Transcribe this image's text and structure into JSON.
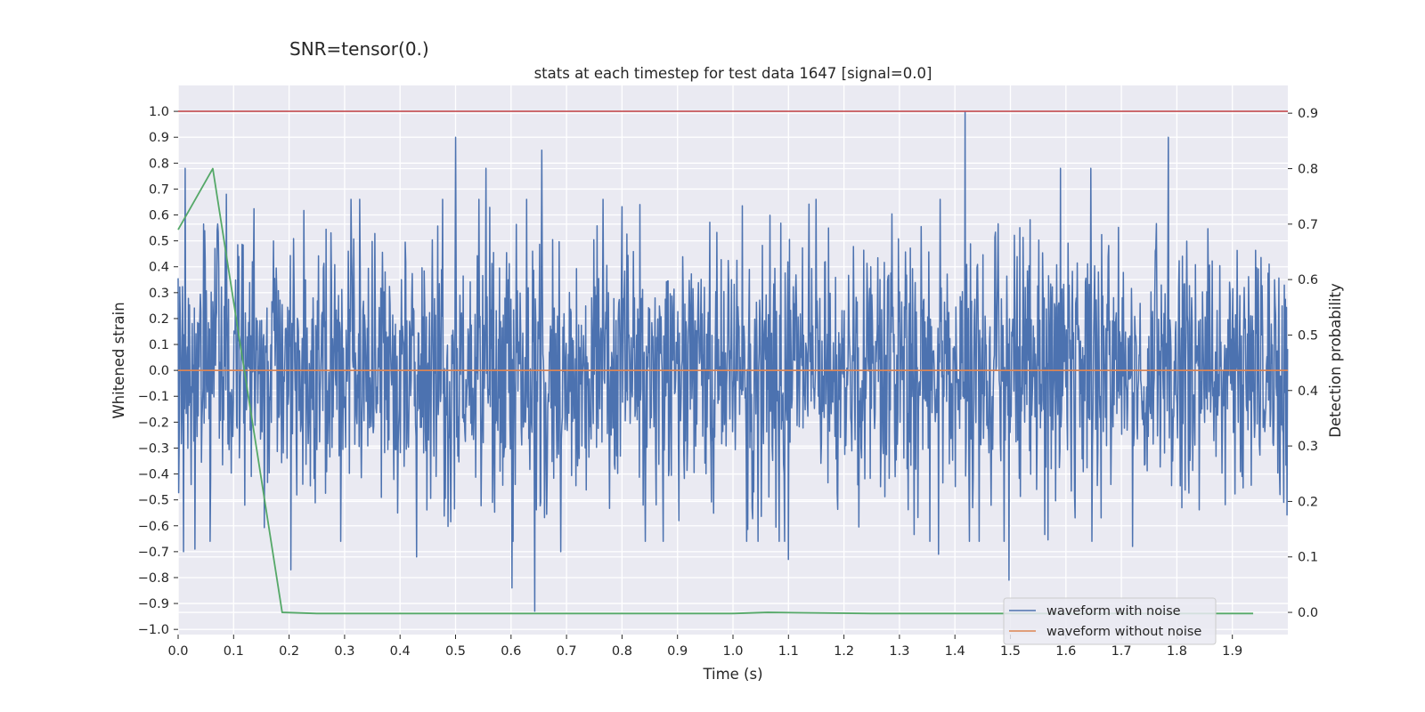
{
  "figure": {
    "suptitle": "SNR=tensor(0.)"
  },
  "chart_data": {
    "type": "line",
    "title": "stats at each timestep for test data 1647 [signal=0.0]",
    "xlabel": "Time (s)",
    "ylabel": "Whitened strain",
    "y2label": "Detection probability",
    "xlim": [
      0.0,
      2.0
    ],
    "ylim": [
      -1.02,
      1.1
    ],
    "y2lim": [
      -0.04,
      0.95
    ],
    "xticks": [
      "0.0",
      "0.1",
      "0.2",
      "0.3",
      "0.4",
      "0.5",
      "0.6",
      "0.7",
      "0.8",
      "0.9",
      "1.0",
      "1.1",
      "1.2",
      "1.3",
      "1.4",
      "1.5",
      "1.6",
      "1.7",
      "1.8",
      "1.9"
    ],
    "yticks": [
      "1.0",
      "0.9",
      "0.8",
      "0.7",
      "0.6",
      "0.5",
      "0.4",
      "0.3",
      "0.2",
      "0.1",
      "0.0",
      "−0.1",
      "−0.2",
      "−0.3",
      "−0.4",
      "−0.5",
      "−0.6",
      "−0.7",
      "−0.8",
      "−0.9",
      "−1.0"
    ],
    "y2ticks": [
      "0.9",
      "0.8",
      "0.7",
      "0.6",
      "0.5",
      "0.4",
      "0.3",
      "0.2",
      "0.1",
      "0.0"
    ],
    "grid": true,
    "legend_position": "bottom-right",
    "threshold_line": {
      "y": 1.0,
      "color": "#c44e52"
    },
    "series": [
      {
        "name": "waveform with noise",
        "color": "#4c72b0",
        "axis": "left",
        "noise_std": 0.26,
        "sample_count": 2048,
        "peaks": [
          {
            "x": 0.013,
            "y": 0.78
          },
          {
            "x": 0.087,
            "y": 0.68
          },
          {
            "x": 0.5,
            "y": 0.9
          },
          {
            "x": 0.555,
            "y": 0.78
          },
          {
            "x": 0.655,
            "y": 0.85
          },
          {
            "x": 1.418,
            "y": 1.0
          },
          {
            "x": 1.785,
            "y": 0.9
          },
          {
            "x": 1.59,
            "y": 0.78
          },
          {
            "x": 1.645,
            "y": 0.78
          },
          {
            "x": 0.01,
            "y": -0.7
          },
          {
            "x": 0.03,
            "y": -0.69
          },
          {
            "x": 0.203,
            "y": -0.77
          },
          {
            "x": 0.602,
            "y": -0.84
          },
          {
            "x": 0.643,
            "y": -0.93
          },
          {
            "x": 1.1,
            "y": -0.73
          },
          {
            "x": 1.497,
            "y": -0.81
          },
          {
            "x": 1.37,
            "y": -0.71
          },
          {
            "x": 0.43,
            "y": -0.72
          },
          {
            "x": 0.69,
            "y": -0.7
          },
          {
            "x": 1.72,
            "y": -0.68
          }
        ]
      },
      {
        "name": "waveform without noise",
        "color": "#dd8452",
        "axis": "left",
        "x": [
          0.0,
          2.0
        ],
        "y": [
          0.0,
          0.0
        ]
      },
      {
        "name": "",
        "color": "#55a868",
        "axis": "right",
        "x": [
          0.0,
          0.0625,
          0.1875,
          0.25,
          0.5,
          0.75,
          1.0,
          1.0625,
          1.25,
          1.5,
          1.75,
          1.9375
        ],
        "y": [
          0.69,
          0.8,
          0.0,
          -0.002,
          -0.002,
          -0.002,
          -0.002,
          0.0,
          -0.002,
          -0.002,
          -0.002,
          -0.002
        ]
      }
    ]
  }
}
